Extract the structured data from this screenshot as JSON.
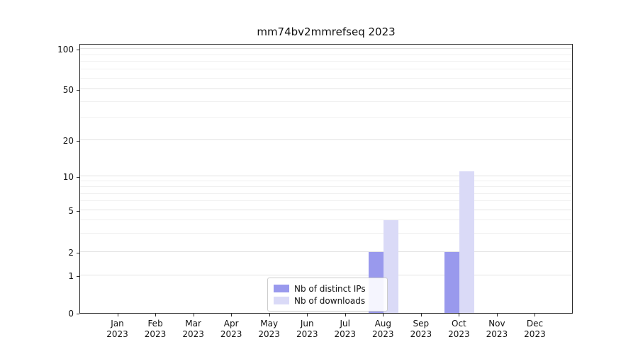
{
  "chart_data": {
    "type": "bar",
    "title": "mm74bv2mmrefseq 2023",
    "categories": [
      "Jan 2023",
      "Feb 2023",
      "Mar 2023",
      "Apr 2023",
      "May 2023",
      "Jun 2023",
      "Jul 2023",
      "Aug 2023",
      "Sep 2023",
      "Oct 2023",
      "Nov 2023",
      "Dec 2023"
    ],
    "series": [
      {
        "name": "Nb of distinct IPs",
        "color": "#9999ed",
        "values": [
          0,
          0,
          0,
          0,
          0,
          0,
          0,
          2,
          0,
          2,
          0,
          0
        ]
      },
      {
        "name": "Nb of downloads",
        "color": "#dadaf7",
        "values": [
          0,
          0,
          0,
          0,
          0,
          0,
          0,
          4,
          0,
          11,
          0,
          0
        ]
      }
    ],
    "xlabel": "",
    "ylabel": "",
    "yticks": [
      0,
      1,
      2,
      5,
      10,
      20,
      50,
      100
    ],
    "y_minor_ticks": [
      3,
      4,
      6,
      7,
      8,
      9,
      30,
      40,
      60,
      70,
      80,
      90
    ],
    "ylim": [
      0,
      115
    ],
    "y_scale": "symlog",
    "grid": "horizontal",
    "legend_position": "bottom-center-inside",
    "colors": {
      "distinct_ips": "#9999ed",
      "downloads": "#dadaf7",
      "gridline": "#e2e2e2",
      "spine": "#2b2b2b"
    }
  }
}
